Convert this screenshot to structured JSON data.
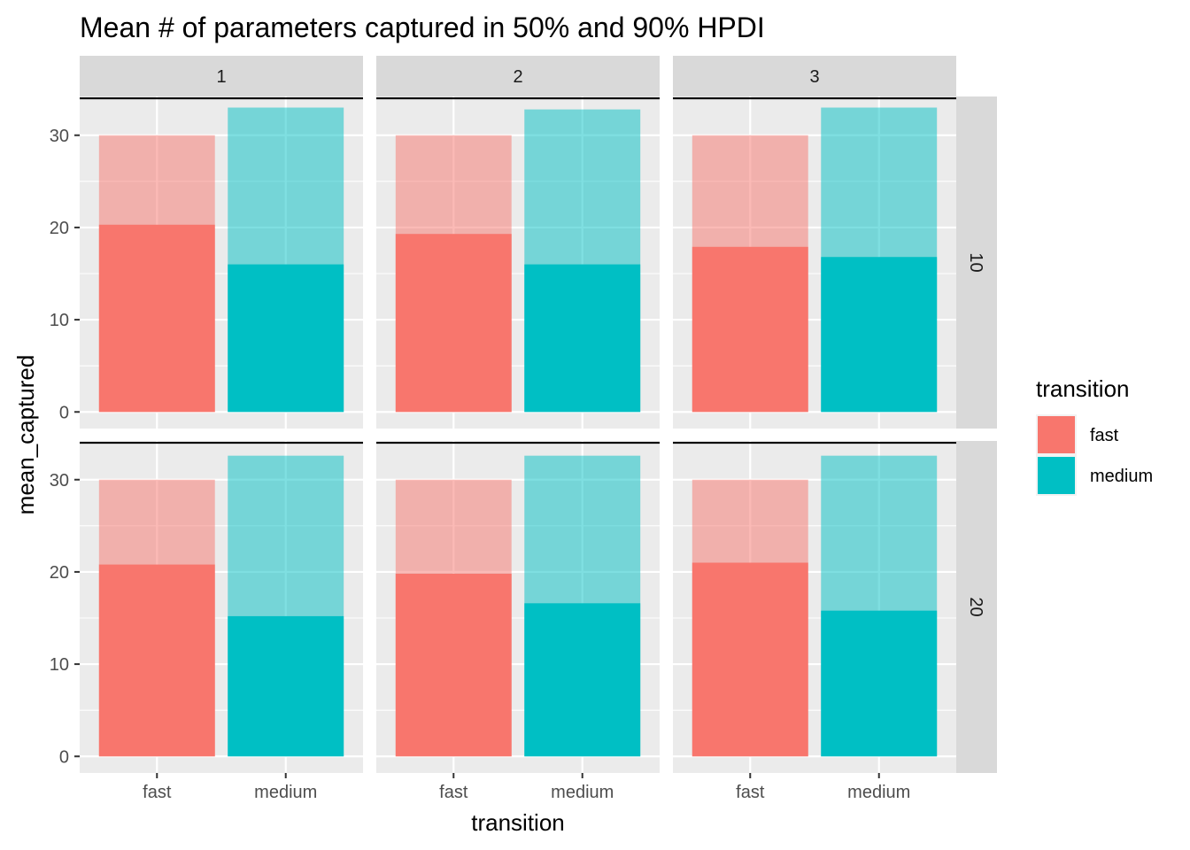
{
  "chart_data": {
    "type": "bar",
    "title": "Mean # of parameters captured in 50% and 90% HPDI",
    "xlabel": "transition",
    "ylabel": "mean_captured",
    "ylim": [
      -1.8,
      34.2
    ],
    "yticks": [
      0,
      10,
      20,
      30
    ],
    "categories": [
      "fast",
      "medium"
    ],
    "reference_line": 34,
    "facet_cols": [
      "1",
      "2",
      "3"
    ],
    "facet_rows": [
      "10",
      "20"
    ],
    "legend": {
      "title": "transition",
      "placement": "right",
      "items": [
        {
          "label": "fast",
          "color": "#F8766D"
        },
        {
          "label": "medium",
          "color": "#00BFC4"
        }
      ]
    },
    "series": [
      {
        "name": "HPDI 90%",
        "alpha": 0.5
      },
      {
        "name": "HPDI 50%",
        "alpha": 1.0
      }
    ],
    "panels": [
      {
        "col": "1",
        "row": "10",
        "hpdi90": [
          30.0,
          33.0
        ],
        "hpdi50": [
          20.3,
          16.0
        ]
      },
      {
        "col": "2",
        "row": "10",
        "hpdi90": [
          30.0,
          32.8
        ],
        "hpdi50": [
          19.3,
          16.0
        ]
      },
      {
        "col": "3",
        "row": "10",
        "hpdi90": [
          30.0,
          33.0
        ],
        "hpdi50": [
          17.9,
          16.8
        ]
      },
      {
        "col": "1",
        "row": "20",
        "hpdi90": [
          30.0,
          32.6
        ],
        "hpdi50": [
          20.8,
          15.2
        ]
      },
      {
        "col": "2",
        "row": "20",
        "hpdi90": [
          30.0,
          32.6
        ],
        "hpdi50": [
          19.8,
          16.6
        ]
      },
      {
        "col": "3",
        "row": "20",
        "hpdi90": [
          30.0,
          32.6
        ],
        "hpdi50": [
          21.0,
          15.8
        ]
      }
    ]
  },
  "colors": {
    "panel_bg": "#EBEBEB",
    "strip_bg": "#D9D9D9",
    "grid": "#FFFFFF",
    "tick": "#333333"
  }
}
